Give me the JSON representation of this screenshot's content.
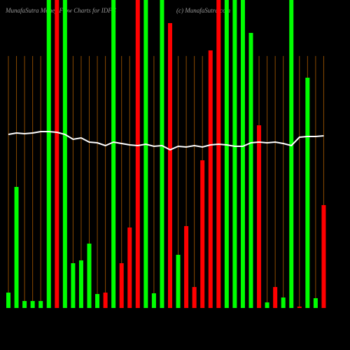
{
  "chart_data": {
    "type": "bar",
    "title": "MunafaSutra Money Flow Charts for IDFC",
    "subtitle": "(c) MunafaSutra.com",
    "values": [
      22,
      173,
      10,
      10,
      10,
      440,
      440,
      440,
      64,
      68,
      92,
      20,
      22,
      440,
      64,
      115,
      440,
      440,
      21,
      440,
      407,
      76,
      117,
      30,
      211,
      368,
      440,
      440,
      440,
      440,
      393,
      261,
      8,
      30,
      15,
      440,
      2,
      329,
      14,
      147
    ],
    "colors": [
      "#00ff00",
      "#00ff00",
      "#00ff00",
      "#00ff00",
      "#00ff00",
      "#00ff00",
      "#ff0000",
      "#00ff00",
      "#00ff00",
      "#00ff00",
      "#00ff00",
      "#00ff00",
      "#ff0000",
      "#00ff00",
      "#ff0000",
      "#ff0000",
      "#ff0000",
      "#00ff00",
      "#00ff00",
      "#00ff00",
      "#ff0000",
      "#00ff00",
      "#ff0000",
      "#ff0000",
      "#ff0000",
      "#ff0000",
      "#ff0000",
      "#00ff00",
      "#00ff00",
      "#00ff00",
      "#00ff00",
      "#ff0000",
      "#00ff00",
      "#ff0000",
      "#00ff00",
      "#00ff00",
      "#ff0000",
      "#00ff00",
      "#00ff00",
      "#ff0000"
    ],
    "line": {
      "color": "#ffffff",
      "values": [
        248,
        250,
        249,
        250,
        252,
        252,
        251,
        248,
        241,
        243,
        237,
        236,
        232,
        237,
        235,
        233,
        232,
        234,
        231,
        232,
        226,
        231,
        230,
        232,
        230,
        233,
        234,
        233,
        231,
        231,
        236,
        237,
        236,
        237,
        235,
        232,
        244,
        245,
        245,
        246
      ]
    },
    "grid_color": "#8b4a00",
    "ylim": [
      0,
      440
    ]
  }
}
